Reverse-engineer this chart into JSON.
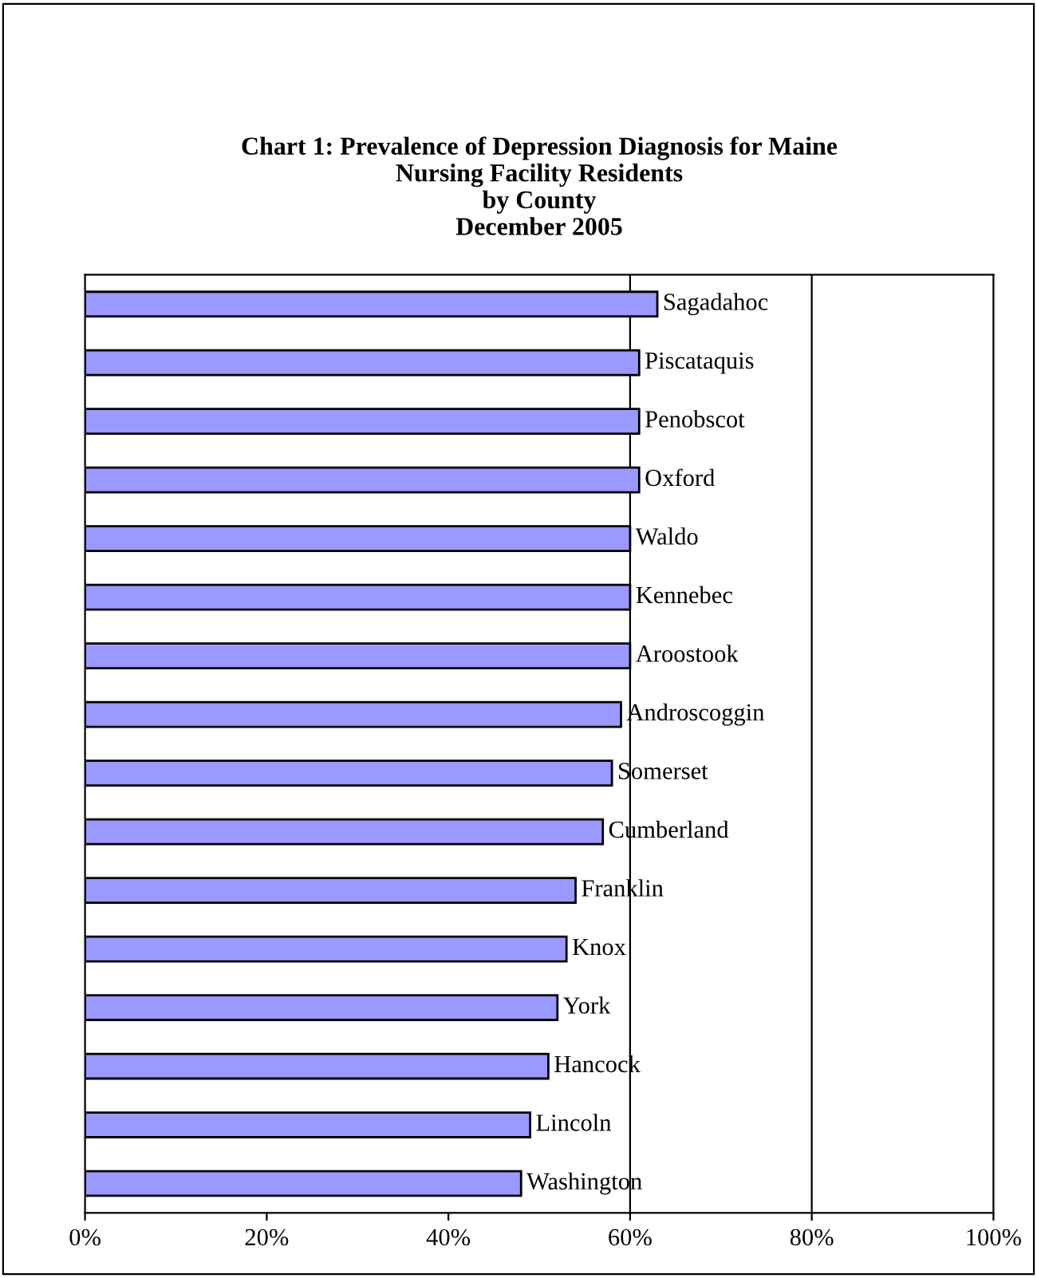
{
  "chart_data": {
    "type": "bar",
    "orientation": "horizontal",
    "title": "Chart 1: Prevalence of Depression Diagnosis for Maine\nNursing Facility Residents\nby County\nDecember 2005",
    "categories": [
      "Sagadahoc",
      "Piscataquis",
      "Penobscot",
      "Oxford",
      "Waldo",
      "Kennebec",
      "Aroostook",
      "Androscoggin",
      "Somerset",
      "Cumberland",
      "Franklin",
      "Knox",
      "York",
      "Hancock",
      "Lincoln",
      "Washington"
    ],
    "values": [
      63,
      61,
      61,
      61,
      60,
      60,
      60,
      59,
      58,
      57,
      54,
      53,
      52,
      51,
      49,
      48
    ],
    "color": "#9999ff",
    "xlim": [
      0,
      100
    ],
    "xticks": [
      {
        "value": 0,
        "label": "0%"
      },
      {
        "value": 20,
        "label": "20%"
      },
      {
        "value": 40,
        "label": "40%"
      },
      {
        "value": 60,
        "label": "60%"
      },
      {
        "value": 80,
        "label": "80%"
      },
      {
        "value": 100,
        "label": "100%"
      }
    ],
    "ref_lines": [
      {
        "axis": "x",
        "value": 60,
        "color": "#000000"
      },
      {
        "axis": "x",
        "value": 80,
        "color": "#000000"
      }
    ],
    "tick_labels": "x"
  }
}
